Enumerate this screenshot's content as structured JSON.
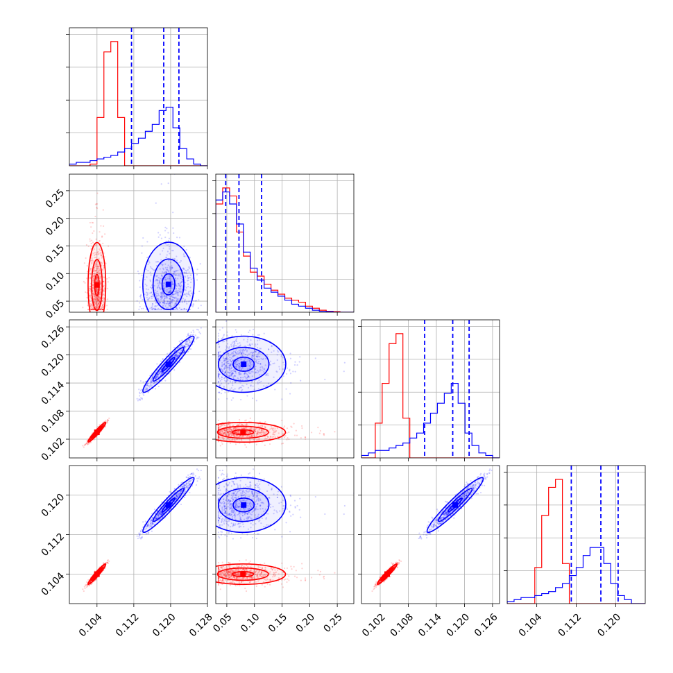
{
  "chart_data": {
    "type": "corner",
    "grid": true,
    "parameters": [
      {
        "range": [
          0.098,
          0.128
        ],
        "ticks": [
          0.104,
          0.112,
          0.12,
          0.128
        ],
        "tick_labels": [
          "0.104",
          "0.112",
          "0.120",
          "0.128"
        ]
      },
      {
        "range": [
          0.03,
          0.28
        ],
        "ticks": [
          0.05,
          0.1,
          0.15,
          0.2,
          0.25
        ],
        "tick_labels": [
          "0.05",
          "0.10",
          "0.15",
          "0.20",
          "0.25"
        ]
      },
      {
        "range": [
          0.098,
          0.1275
        ],
        "ticks": [
          0.102,
          0.108,
          0.114,
          0.12,
          0.126
        ],
        "tick_labels": [
          "0.102",
          "0.108",
          "0.114",
          "0.120",
          "0.126"
        ]
      },
      {
        "range": [
          0.098,
          0.126
        ],
        "ticks": [
          0.104,
          0.112,
          0.12
        ],
        "tick_labels": [
          "0.104",
          "0.112",
          "0.120"
        ]
      }
    ],
    "series": [
      {
        "color": "#ff0000",
        "center": [
          0.104,
          0.072,
          0.1035,
          0.104
        ],
        "spread": [
          0.001,
          0.04,
          0.0011,
          0.0011
        ],
        "quantiles": [],
        "histograms": [
          [
            0,
            0,
            0,
            1,
            28,
            66,
            72,
            28,
            0,
            0,
            0,
            0,
            0,
            0,
            0,
            0,
            0,
            0,
            0,
            0
          ],
          [
            54,
            62,
            58,
            40,
            28,
            20,
            18,
            14,
            11,
            9,
            7,
            6,
            5,
            3,
            2,
            1,
            0.5,
            0.3,
            0,
            0
          ],
          [
            0,
            0,
            14,
            30,
            46,
            50,
            16,
            0,
            0,
            0,
            0,
            0,
            0,
            0,
            0,
            0,
            0,
            0,
            0,
            0
          ],
          [
            0,
            0,
            0,
            0,
            18,
            44,
            58,
            62,
            20,
            0,
            0,
            0,
            0,
            0,
            0,
            0,
            0,
            0,
            0,
            0
          ]
        ]
      },
      {
        "color": "#0000ff",
        "center": [
          0.1195,
          0.072,
          0.118,
          0.118
        ],
        "spread": [
          0.003,
          0.035,
          0.0032,
          0.003
        ],
        "quantiles": [
          [
            0.1115,
            0.1185,
            0.1218
          ],
          [
            0.048,
            0.072,
            0.113
          ],
          [
            0.1115,
            0.1175,
            0.121
          ],
          [
            0.111,
            0.117,
            0.1205
          ]
        ],
        "histograms": [
          [
            1,
            2,
            2,
            3,
            4,
            5,
            6,
            8,
            10,
            13,
            16,
            20,
            24,
            32,
            34,
            22,
            10,
            4,
            1,
            0
          ],
          [
            56,
            60,
            54,
            44,
            30,
            22,
            16,
            12,
            10,
            8,
            6,
            4,
            3,
            2,
            1,
            0.5,
            0.3,
            0,
            0,
            0
          ],
          [
            1,
            2,
            3,
            3,
            4,
            5,
            6,
            8,
            10,
            14,
            18,
            22,
            26,
            30,
            22,
            10,
            5,
            2,
            1,
            0
          ],
          [
            1,
            2,
            3,
            3,
            4,
            5,
            6,
            8,
            10,
            14,
            18,
            24,
            28,
            28,
            20,
            10,
            4,
            2,
            0,
            0
          ]
        ]
      }
    ]
  }
}
